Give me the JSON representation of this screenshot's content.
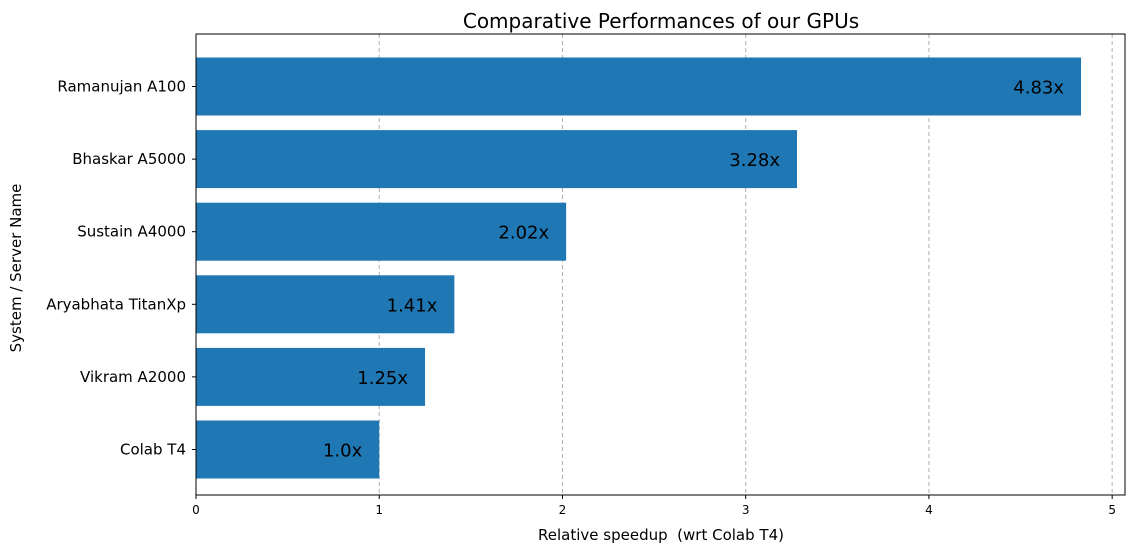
{
  "chart_data": {
    "type": "bar",
    "orientation": "horizontal",
    "title": "Comparative Performances of our GPUs",
    "xlabel": "Relative speedup  (wrt Colab T4)",
    "ylabel": "System / Server Name",
    "categories": [
      "Ramanujan A100",
      "Bhaskar A5000",
      "Sustain A4000",
      "Aryabhata TitanXp",
      "Vikram A2000",
      "Colab T4"
    ],
    "values": [
      4.83,
      3.28,
      2.02,
      1.41,
      1.25,
      1.0
    ],
    "data_labels": [
      "4.83x",
      "3.28x",
      "2.02x",
      "1.41x",
      "1.25x",
      "1.0x"
    ],
    "xlim": [
      0,
      5.07
    ],
    "xticks": [
      0,
      1,
      2,
      3,
      4,
      5
    ],
    "xtick_labels": [
      "0",
      "1",
      "2",
      "3",
      "4",
      "5"
    ],
    "grid": "x-axis dashed",
    "bar_color": "#1f77b4",
    "grid_color": "#b0b0b0"
  }
}
